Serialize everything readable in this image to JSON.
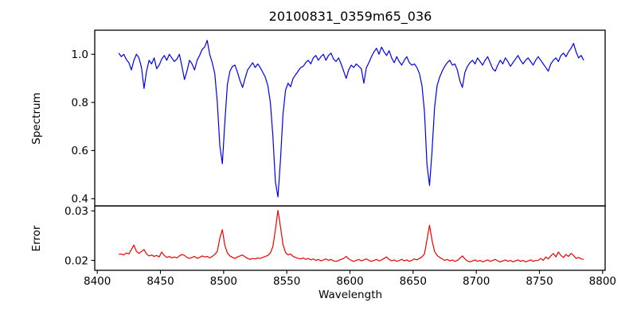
{
  "chart_data": {
    "type": "line",
    "title": "20100831_0359m65_036",
    "xlabel": "Wavelength",
    "grid": false,
    "legend": false,
    "xlim": [
      8398,
      8802
    ],
    "xticks": [
      8400,
      8450,
      8500,
      8550,
      8600,
      8650,
      8700,
      8750,
      8800
    ],
    "xtick_labels": [
      "8400",
      "8450",
      "8500",
      "8550",
      "8600",
      "8650",
      "8700",
      "8750",
      "8800"
    ],
    "x": [
      8417,
      8419,
      8421,
      8423,
      8425,
      8427,
      8429,
      8431,
      8433,
      8435,
      8437,
      8439,
      8441,
      8443,
      8445,
      8447,
      8449,
      8451,
      8453,
      8455,
      8457,
      8459,
      8461,
      8463,
      8465,
      8467,
      8469,
      8471,
      8473,
      8475,
      8477,
      8479,
      8481,
      8483,
      8485,
      8487,
      8489,
      8491,
      8493,
      8495,
      8497,
      8499,
      8501,
      8503,
      8505,
      8507,
      8509,
      8511,
      8513,
      8515,
      8517,
      8519,
      8521,
      8523,
      8525,
      8527,
      8529,
      8531,
      8533,
      8535,
      8537,
      8539,
      8541,
      8543,
      8545,
      8547,
      8549,
      8551,
      8553,
      8555,
      8557,
      8559,
      8561,
      8563,
      8565,
      8567,
      8569,
      8571,
      8573,
      8575,
      8577,
      8579,
      8581,
      8583,
      8585,
      8587,
      8589,
      8591,
      8593,
      8595,
      8597,
      8599,
      8601,
      8603,
      8605,
      8607,
      8609,
      8611,
      8613,
      8615,
      8617,
      8619,
      8621,
      8623,
      8625,
      8627,
      8629,
      8631,
      8633,
      8635,
      8637,
      8639,
      8641,
      8643,
      8645,
      8647,
      8649,
      8651,
      8653,
      8655,
      8657,
      8659,
      8661,
      8663,
      8665,
      8667,
      8669,
      8671,
      8673,
      8675,
      8677,
      8679,
      8681,
      8683,
      8685,
      8687,
      8689,
      8691,
      8693,
      8695,
      8697,
      8699,
      8701,
      8703,
      8705,
      8707,
      8709,
      8711,
      8713,
      8715,
      8717,
      8719,
      8721,
      8723,
      8725,
      8727,
      8729,
      8731,
      8733,
      8735,
      8737,
      8739,
      8741,
      8743,
      8745,
      8747,
      8749,
      8751,
      8753,
      8755,
      8757,
      8759,
      8761,
      8763,
      8765,
      8767,
      8769,
      8771,
      8773,
      8775,
      8777,
      8779,
      8781,
      8783,
      8785
    ],
    "panels": [
      {
        "name": "spectrum",
        "ylabel": "Spectrum",
        "ylim": [
          0.37,
          1.1
        ],
        "yticks": [
          0.4,
          0.6,
          0.8,
          1.0
        ],
        "ytick_labels": [
          "0.4",
          "0.6",
          "0.8",
          "1.0"
        ],
        "color": "#0000ee",
        "values": [
          1.005,
          0.99,
          1.0,
          0.978,
          0.965,
          0.935,
          0.975,
          1.0,
          0.985,
          0.945,
          0.858,
          0.93,
          0.975,
          0.96,
          0.985,
          0.94,
          0.955,
          0.98,
          0.995,
          0.975,
          1.0,
          0.985,
          0.97,
          0.98,
          1.0,
          0.95,
          0.895,
          0.93,
          0.975,
          0.96,
          0.935,
          0.975,
          0.995,
          1.02,
          1.03,
          1.058,
          1.0,
          0.965,
          0.92,
          0.8,
          0.62,
          0.545,
          0.72,
          0.875,
          0.93,
          0.95,
          0.955,
          0.925,
          0.89,
          0.862,
          0.9,
          0.935,
          0.95,
          0.965,
          0.945,
          0.96,
          0.945,
          0.925,
          0.905,
          0.87,
          0.8,
          0.66,
          0.47,
          0.407,
          0.56,
          0.75,
          0.85,
          0.88,
          0.865,
          0.9,
          0.915,
          0.93,
          0.945,
          0.95,
          0.965,
          0.975,
          0.96,
          0.985,
          0.995,
          0.975,
          0.99,
          1.0,
          0.975,
          0.995,
          1.005,
          0.98,
          0.97,
          0.985,
          0.96,
          0.93,
          0.9,
          0.935,
          0.955,
          0.945,
          0.96,
          0.95,
          0.94,
          0.88,
          0.945,
          0.965,
          0.99,
          1.01,
          1.025,
          1.0,
          1.03,
          1.01,
          0.995,
          1.015,
          0.985,
          0.965,
          0.99,
          0.97,
          0.955,
          0.975,
          0.99,
          0.965,
          0.955,
          0.96,
          0.945,
          0.92,
          0.87,
          0.76,
          0.54,
          0.455,
          0.6,
          0.78,
          0.87,
          0.905,
          0.93,
          0.95,
          0.965,
          0.975,
          0.955,
          0.96,
          0.935,
          0.89,
          0.862,
          0.925,
          0.95,
          0.965,
          0.975,
          0.96,
          0.985,
          0.97,
          0.955,
          0.975,
          0.99,
          0.965,
          0.94,
          0.93,
          0.955,
          0.975,
          0.96,
          0.985,
          0.97,
          0.95,
          0.965,
          0.98,
          0.995,
          0.975,
          0.96,
          0.975,
          0.985,
          0.97,
          0.955,
          0.975,
          0.99,
          0.975,
          0.96,
          0.945,
          0.93,
          0.96,
          0.975,
          0.985,
          0.97,
          0.995,
          1.005,
          0.99,
          1.01,
          1.025,
          1.045,
          1.01,
          0.985,
          0.995,
          0.975
        ]
      },
      {
        "name": "error",
        "ylabel": "Error",
        "ylim": [
          0.018,
          0.031
        ],
        "yticks": [
          0.02,
          0.03
        ],
        "ytick_labels": [
          "0.02",
          "0.03"
        ],
        "color": "#ee0000",
        "values": [
          0.0212,
          0.0213,
          0.0211,
          0.0215,
          0.0213,
          0.0222,
          0.0231,
          0.0218,
          0.0214,
          0.0218,
          0.0222,
          0.0213,
          0.0209,
          0.0211,
          0.0208,
          0.021,
          0.0207,
          0.0217,
          0.021,
          0.0206,
          0.0208,
          0.0205,
          0.0207,
          0.0205,
          0.0209,
          0.0212,
          0.021,
          0.0206,
          0.0204,
          0.0206,
          0.0208,
          0.0204,
          0.0206,
          0.0209,
          0.0207,
          0.0208,
          0.0205,
          0.0208,
          0.0212,
          0.0218,
          0.0245,
          0.0262,
          0.023,
          0.0215,
          0.0209,
          0.0206,
          0.0204,
          0.0207,
          0.0209,
          0.0211,
          0.0207,
          0.0204,
          0.0202,
          0.0204,
          0.0203,
          0.0205,
          0.0204,
          0.0206,
          0.0208,
          0.021,
          0.0215,
          0.0228,
          0.0262,
          0.0301,
          0.0268,
          0.0232,
          0.0216,
          0.0211,
          0.0213,
          0.0208,
          0.0206,
          0.0204,
          0.0203,
          0.0205,
          0.0202,
          0.0204,
          0.0201,
          0.0203,
          0.02,
          0.0202,
          0.0199,
          0.0201,
          0.0203,
          0.02,
          0.0202,
          0.0199,
          0.0198,
          0.02,
          0.0202,
          0.0204,
          0.0208,
          0.0203,
          0.02,
          0.0198,
          0.02,
          0.0202,
          0.0199,
          0.0201,
          0.0203,
          0.02,
          0.0198,
          0.02,
          0.0202,
          0.0199,
          0.0201,
          0.0204,
          0.0207,
          0.0202,
          0.0199,
          0.0201,
          0.0198,
          0.02,
          0.0202,
          0.0199,
          0.0201,
          0.0198,
          0.02,
          0.0203,
          0.0201,
          0.0204,
          0.0207,
          0.0213,
          0.0242,
          0.0271,
          0.024,
          0.0218,
          0.021,
          0.0206,
          0.0203,
          0.02,
          0.0202,
          0.0199,
          0.0201,
          0.0198,
          0.02,
          0.0204,
          0.0209,
          0.0203,
          0.0199,
          0.0197,
          0.0199,
          0.0201,
          0.0198,
          0.02,
          0.0197,
          0.0199,
          0.0201,
          0.0198,
          0.02,
          0.0202,
          0.0199,
          0.0197,
          0.0199,
          0.0201,
          0.0198,
          0.02,
          0.0197,
          0.0199,
          0.0201,
          0.0198,
          0.02,
          0.0197,
          0.0199,
          0.0201,
          0.0198,
          0.02,
          0.02,
          0.0204,
          0.02,
          0.0207,
          0.0203,
          0.0209,
          0.0214,
          0.0207,
          0.0217,
          0.021,
          0.0206,
          0.0212,
          0.0208,
          0.0214,
          0.021,
          0.0204,
          0.0206,
          0.0203,
          0.0202
        ]
      }
    ]
  }
}
